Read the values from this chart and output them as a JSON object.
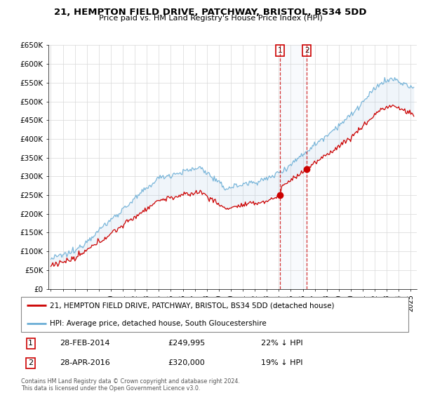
{
  "title": "21, HEMPTON FIELD DRIVE, PATCHWAY, BRISTOL, BS34 5DD",
  "subtitle": "Price paid vs. HM Land Registry's House Price Index (HPI)",
  "ylabel_ticks": [
    "£0",
    "£50K",
    "£100K",
    "£150K",
    "£200K",
    "£250K",
    "£300K",
    "£350K",
    "£400K",
    "£450K",
    "£500K",
    "£550K",
    "£600K",
    "£650K"
  ],
  "ytick_values": [
    0,
    50000,
    100000,
    150000,
    200000,
    250000,
    300000,
    350000,
    400000,
    450000,
    500000,
    550000,
    600000,
    650000
  ],
  "hpi_color": "#6baed6",
  "price_color": "#cc0000",
  "transaction1_date": 2014.12,
  "transaction1_price": 249995,
  "transaction2_date": 2016.33,
  "transaction2_price": 320000,
  "legend_line1": "21, HEMPTON FIELD DRIVE, PATCHWAY, BRISTOL, BS34 5DD (detached house)",
  "legend_line2": "HPI: Average price, detached house, South Gloucestershire",
  "note1_num": "1",
  "note1_date": "28-FEB-2014",
  "note1_price": "£249,995",
  "note1_hpi": "22% ↓ HPI",
  "note2_num": "2",
  "note2_date": "28-APR-2016",
  "note2_price": "£320,000",
  "note2_hpi": "19% ↓ HPI",
  "footer": "Contains HM Land Registry data © Crown copyright and database right 2024.\nThis data is licensed under the Open Government Licence v3.0.",
  "xmin": 1994.8,
  "xmax": 2025.5,
  "ymin": 0,
  "ymax": 650000
}
